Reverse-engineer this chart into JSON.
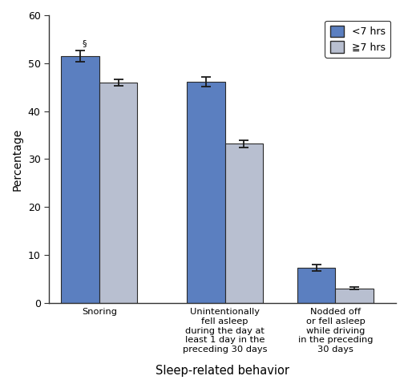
{
  "categories": [
    "Snoring",
    "Unintentionally\nfell asleep\nduring the day at\nleast 1 day in the\npreceding 30 days",
    "Nodded off\nor fell asleep\nwhile driving\nin the preceding\n30 days"
  ],
  "less7_values": [
    51.5,
    46.2,
    7.3
  ],
  "ge7_values": [
    46.0,
    33.2,
    3.0
  ],
  "less7_errors": [
    1.2,
    1.0,
    0.7
  ],
  "ge7_errors": [
    0.7,
    0.7,
    0.3
  ],
  "less7_color": "#5b7fc0",
  "ge7_color": "#b8bfd0",
  "bar_edge_color": "#2a2a2a",
  "error_color": "#1a1a1a",
  "ylabel": "Percentage",
  "xlabel": "Sleep-related behavior",
  "ylim": [
    0,
    60
  ],
  "yticks": [
    0,
    10,
    20,
    30,
    40,
    50,
    60
  ],
  "legend_labels": [
    "<7 hrs",
    "≧7 hrs"
  ],
  "symbol": "§",
  "background_color": "#ffffff",
  "bar_width": 0.38,
  "x_positions": [
    0.5,
    1.75,
    2.85
  ]
}
